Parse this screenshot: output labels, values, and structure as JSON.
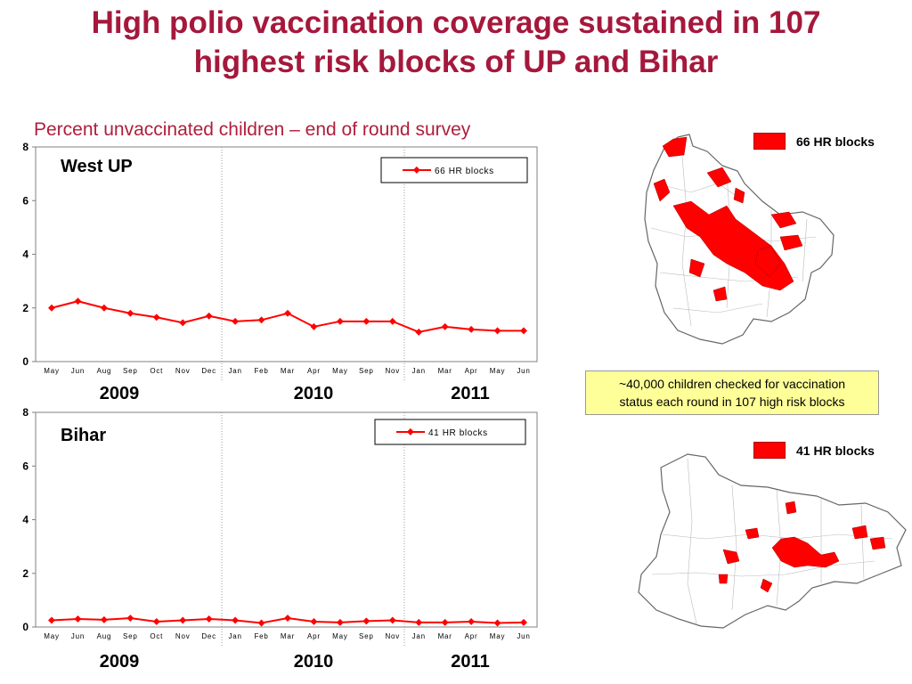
{
  "title": {
    "line1": "High polio vaccination coverage sustained in 107",
    "line2": "highest risk blocks of UP and Bihar"
  },
  "subtitle": "Percent unvaccinated children – end of round survey",
  "colors": {
    "title": "#a5183c",
    "series": "#ff0000",
    "callout_bg": "#ffff99"
  },
  "maps": {
    "up": {
      "legend_label": "66 HR blocks"
    },
    "bihar": {
      "legend_label": "41 HR blocks"
    }
  },
  "callout": {
    "line1": "~40,000 children checked for vaccination",
    "line2": "status each round in 107 high risk blocks"
  },
  "chart_data": [
    {
      "type": "line",
      "title": "West UP",
      "categories": [
        "May",
        "Jun",
        "Aug",
        "Sep",
        "Oct",
        "Nov",
        "Dec",
        "Jan",
        "Feb",
        "Mar",
        "Apr",
        "May",
        "Sep",
        "Nov",
        "Jan",
        "Mar",
        "Apr",
        "May",
        "Jun"
      ],
      "series": [
        {
          "name": "66 HR blocks",
          "values": [
            2.0,
            2.25,
            2.0,
            1.8,
            1.65,
            1.45,
            1.7,
            1.5,
            1.55,
            1.8,
            1.3,
            1.5,
            1.5,
            1.5,
            1.1,
            1.3,
            1.2,
            1.15,
            1.15
          ]
        }
      ],
      "ylim": [
        0,
        8
      ],
      "yticks": [
        0,
        2,
        4,
        6,
        8
      ],
      "year_groups": [
        "2009",
        "2010",
        "2011"
      ],
      "legend_position": "top-right",
      "grid": false
    },
    {
      "type": "line",
      "title": "Bihar",
      "categories": [
        "May",
        "Jun",
        "Aug",
        "Sep",
        "Oct",
        "Nov",
        "Dec",
        "Jan",
        "Feb",
        "Mar",
        "Apr",
        "May",
        "Sep",
        "Nov",
        "Jan",
        "Mar",
        "Apr",
        "May",
        "Jun"
      ],
      "series": [
        {
          "name": "41 HR blocks",
          "values": [
            0.25,
            0.3,
            0.27,
            0.33,
            0.2,
            0.25,
            0.3,
            0.25,
            0.15,
            0.33,
            0.2,
            0.17,
            0.22,
            0.25,
            0.17,
            0.17,
            0.2,
            0.15,
            0.17
          ]
        }
      ],
      "ylim": [
        0,
        8
      ],
      "yticks": [
        0,
        2,
        4,
        6,
        8
      ],
      "year_groups": [
        "2009",
        "2010",
        "2011"
      ],
      "legend_position": "top-right",
      "grid": false
    }
  ]
}
